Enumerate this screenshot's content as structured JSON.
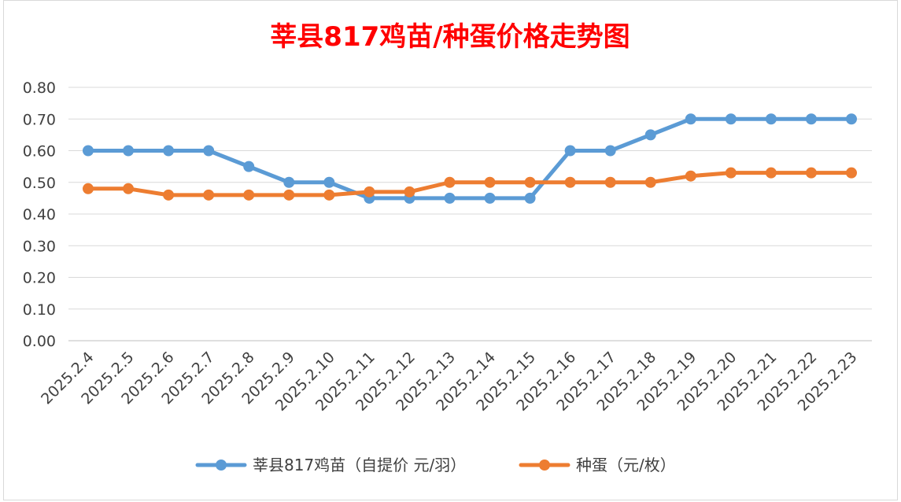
{
  "chart_data": {
    "type": "line",
    "title": "莘县817鸡苗/种蛋价格走势图",
    "categories": [
      "2025.2.4",
      "2025.2.5",
      "2025.2.6",
      "2025.2.7",
      "2025.2.8",
      "2025.2.9",
      "2025.2.10",
      "2025.2.11",
      "2025.2.12",
      "2025.2.13",
      "2025.2.14",
      "2025.2.15",
      "2025.2.16",
      "2025.2.17",
      "2025.2.18",
      "2025.2.19",
      "2025.2.20",
      "2025.2.21",
      "2025.2.22",
      "2025.2.23"
    ],
    "yticks": [
      "0.00",
      "0.10",
      "0.20",
      "0.30",
      "0.40",
      "0.50",
      "0.60",
      "0.70",
      "0.80"
    ],
    "ylim": [
      0,
      0.8
    ],
    "grid": true,
    "legend_position": "bottom",
    "series": [
      {
        "name": "莘县817鸡苗（自提价 元/羽）",
        "color": "#5b9bd5",
        "values": [
          0.6,
          0.6,
          0.6,
          0.6,
          0.55,
          0.5,
          0.5,
          0.45,
          0.45,
          0.45,
          0.45,
          0.45,
          0.6,
          0.6,
          0.65,
          0.7,
          0.7,
          0.7,
          0.7,
          0.7
        ]
      },
      {
        "name": "种蛋（元/枚）",
        "color": "#ed7d31",
        "values": [
          0.48,
          0.48,
          0.46,
          0.46,
          0.46,
          0.46,
          0.46,
          0.47,
          0.47,
          0.5,
          0.5,
          0.5,
          0.5,
          0.5,
          0.5,
          0.52,
          0.53,
          0.53,
          0.53,
          0.53
        ]
      }
    ]
  }
}
